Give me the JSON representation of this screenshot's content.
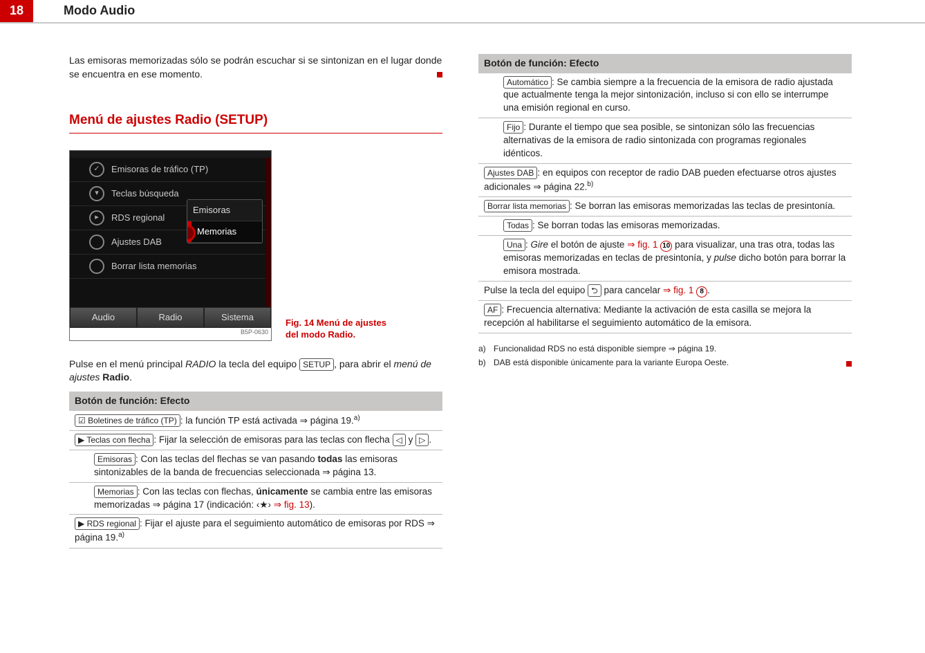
{
  "page_number": "18",
  "section": "Modo Audio",
  "colors": {
    "accent": "#cc0000",
    "header_rule": "#c8c8c8"
  },
  "left": {
    "intro": "Las emisoras memorizadas sólo se podrán escuchar si se sintonizan en el lugar donde se encuentra en ese momento.",
    "heading": "Menú de ajustes Radio (SETUP)",
    "fig": {
      "items": [
        {
          "icon": "✓",
          "label": "Emisoras de tráfico (TP)"
        },
        {
          "icon": "▾",
          "label": "Teclas búsqueda"
        },
        {
          "icon": "▸",
          "label": "RDS regional"
        },
        {
          "icon": "",
          "label": "Ajustes DAB"
        },
        {
          "icon": "",
          "label": "Borrar lista memorias"
        }
      ],
      "popup": {
        "opt1": "Emisoras",
        "opt2": "Memorias"
      },
      "tabs": {
        "t1": "Audio",
        "t2": "Radio",
        "t3": "Sistema"
      },
      "code": "B5P-0630",
      "caption_a": "Fig. 14  Menú de ajustes",
      "caption_b": "del modo Radio."
    },
    "after_fig_a": "Pulse en el menú principal ",
    "after_fig_radio": "RADIO",
    "after_fig_b": " la tecla del equipo ",
    "btn_setup": "SETUP",
    "after_fig_c": ", para abrir el ",
    "after_fig_menu": "menú de ajustes",
    "after_fig_radio2": " Radio",
    "table_head": "Botón de función: Efecto",
    "rows": {
      "r1_btn": "☑ Boletines de tráfico (TP)",
      "r1_txt": ": la función TP está activada ⇒ página 19.",
      "r1_sup": "a)",
      "r2_btn": "▶ Teclas con flecha",
      "r2_txt_a": ": Fijar la selección de emisoras para las teclas con flecha ",
      "r2_b1": "◁",
      "r2_mid": " y ",
      "r2_b2": "▷",
      "r3_btn": "Emisoras",
      "r3_txt_a": ": Con las teclas del flechas se van pasando ",
      "r3_bold": "todas",
      "r3_txt_b": " las emisoras sintonizables de la banda de frecuencias seleccionada ⇒ página 13.",
      "r4_btn": "Memorias",
      "r4_txt_a": ": Con las teclas con flechas, ",
      "r4_bold": "únicamente",
      "r4_txt_b": " se cambia entre las emisoras memorizadas ⇒ página 17 (indicación: ‹★›  ",
      "r4_link": "⇒ fig. 13",
      "r4_txt_c": ").",
      "r5_btn": "▶ RDS regional",
      "r5_txt": ": Fijar el ajuste para el seguimiento automático de emisoras por RDS ⇒ página 19.",
      "r5_sup": "a)"
    }
  },
  "right": {
    "table_head": "Botón de función: Efecto",
    "rows": {
      "r1_btn": "Automático",
      "r1_txt": ": Se cambia siempre a la frecuencia de la emisora de radio ajustada que actualmente tenga la mejor sintonización, incluso si con ello se interrumpe una emisión regional en curso.",
      "r2_btn": "Fijo",
      "r2_txt": ": Durante el tiempo que sea posible, se sintonizan sólo las frecuencias alternativas de la emisora de radio sintonizada con programas regionales idénticos.",
      "r3_btn": "Ajustes DAB",
      "r3_txt": ": en equipos con receptor de radio DAB pueden efectuarse otros ajustes adicionales ⇒ página 22.",
      "r3_sup": "b)",
      "r4_btn": "Borrar lista memorias",
      "r4_txt": ": Se borran las emisoras memorizadas las teclas de presintonía.",
      "r5_btn": "Todas",
      "r5_txt": ": Se borran todas las emisoras memorizadas.",
      "r6_btn": "Una",
      "r6_a": ": ",
      "r6_gire": "Gire",
      "r6_b": " el botón de ajuste ",
      "r6_link1": "⇒ fig. 1",
      "r6_circ1": "10",
      "r6_c": " para visualizar, una tras otra, todas las emisoras memorizadas en teclas de presintonía, y ",
      "r6_pulse": "pulse",
      "r6_d": " dicho botón para borrar la emisora mostrada.",
      "r7_a": "Pulse la tecla del equipo ",
      "r7_btn": "⮌",
      "r7_b": " para cancelar ",
      "r7_link": "⇒ fig. 1",
      "r7_circ": "8",
      "r8_btn": "AF",
      "r8_txt": ": Frecuencia alternativa: Mediante la activación de esta casilla se mejora la recepción al habilitarse el seguimiento automático de la emisora."
    },
    "footnotes": {
      "a_mark": "a)",
      "a_txt": "Funcionalidad RDS no está disponible siempre ⇒ página 19.",
      "b_mark": "b)",
      "b_txt": "DAB está disponible únicamente para la variante Europa Oeste."
    }
  }
}
